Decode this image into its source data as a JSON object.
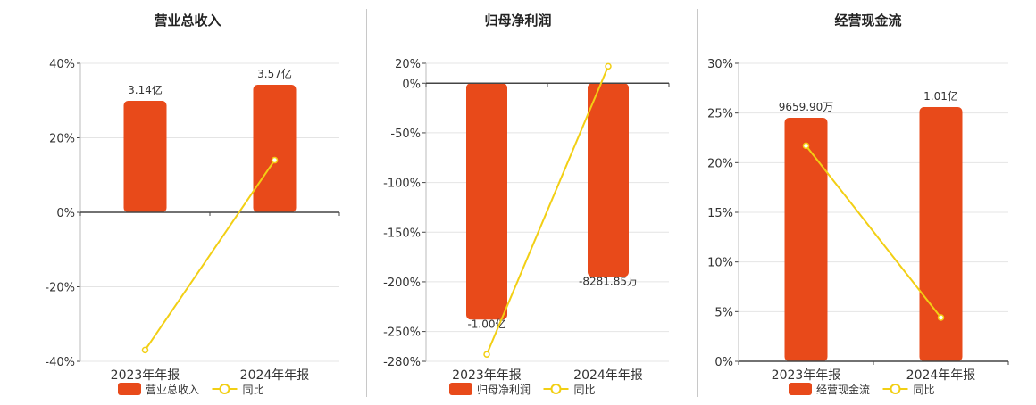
{
  "chart_data": [
    {
      "type": "bar",
      "title": "营业总收入",
      "categories": [
        "2023年年报",
        "2024年年报"
      ],
      "series": [
        {
          "name": "营业总收入",
          "type": "bar",
          "values": [
            3.14,
            3.57
          ],
          "unit": "亿",
          "labels": [
            "3.14亿",
            "3.57亿"
          ]
        },
        {
          "name": "同比",
          "type": "line",
          "values": [
            -36.98,
            14.0
          ],
          "unit": "%"
        }
      ],
      "ylim": [
        -40,
        40
      ],
      "yticks": [
        "40%",
        "20%",
        "0%",
        "-20%",
        "-40%"
      ],
      "grid": true,
      "legend": "bottom"
    },
    {
      "type": "bar",
      "title": "归母净利润",
      "categories": [
        "2023年年报",
        "2024年年报"
      ],
      "series": [
        {
          "name": "归母净利润",
          "type": "bar",
          "values": [
            -1.0,
            -0.828185
          ],
          "unit": "亿",
          "labels": [
            "-1.00亿",
            "-8281.85万"
          ]
        },
        {
          "name": "同比",
          "type": "line",
          "values": [
            -273.0,
            17.0
          ],
          "unit": "%"
        }
      ],
      "ylim": [
        -280,
        20
      ],
      "yticks": [
        "20%",
        "0%",
        "-50%",
        "-100%",
        "-150%",
        "-200%",
        "-250%",
        "-280%"
      ],
      "grid": true,
      "legend": "bottom"
    },
    {
      "type": "bar",
      "title": "经营现金流",
      "categories": [
        "2023年年报",
        "2024年年报"
      ],
      "series": [
        {
          "name": "经营现金流",
          "type": "bar",
          "values": [
            0.96599,
            1.01
          ],
          "unit": "亿",
          "labels": [
            "9659.90万",
            "1.01亿"
          ]
        },
        {
          "name": "同比",
          "type": "line",
          "values": [
            21.7,
            4.4
          ],
          "unit": "%"
        }
      ],
      "ylim": [
        0,
        30
      ],
      "yticks": [
        "30%",
        "25%",
        "20%",
        "15%",
        "10%",
        "5%",
        "0%"
      ],
      "grid": true,
      "legend": "bottom"
    }
  ],
  "legend_yoy_label": "同比",
  "colors": {
    "bar": "#e84a1a",
    "line": "#f2cf14",
    "axis": "#444444",
    "grid": "#e4e4e4",
    "text": "#333333"
  }
}
